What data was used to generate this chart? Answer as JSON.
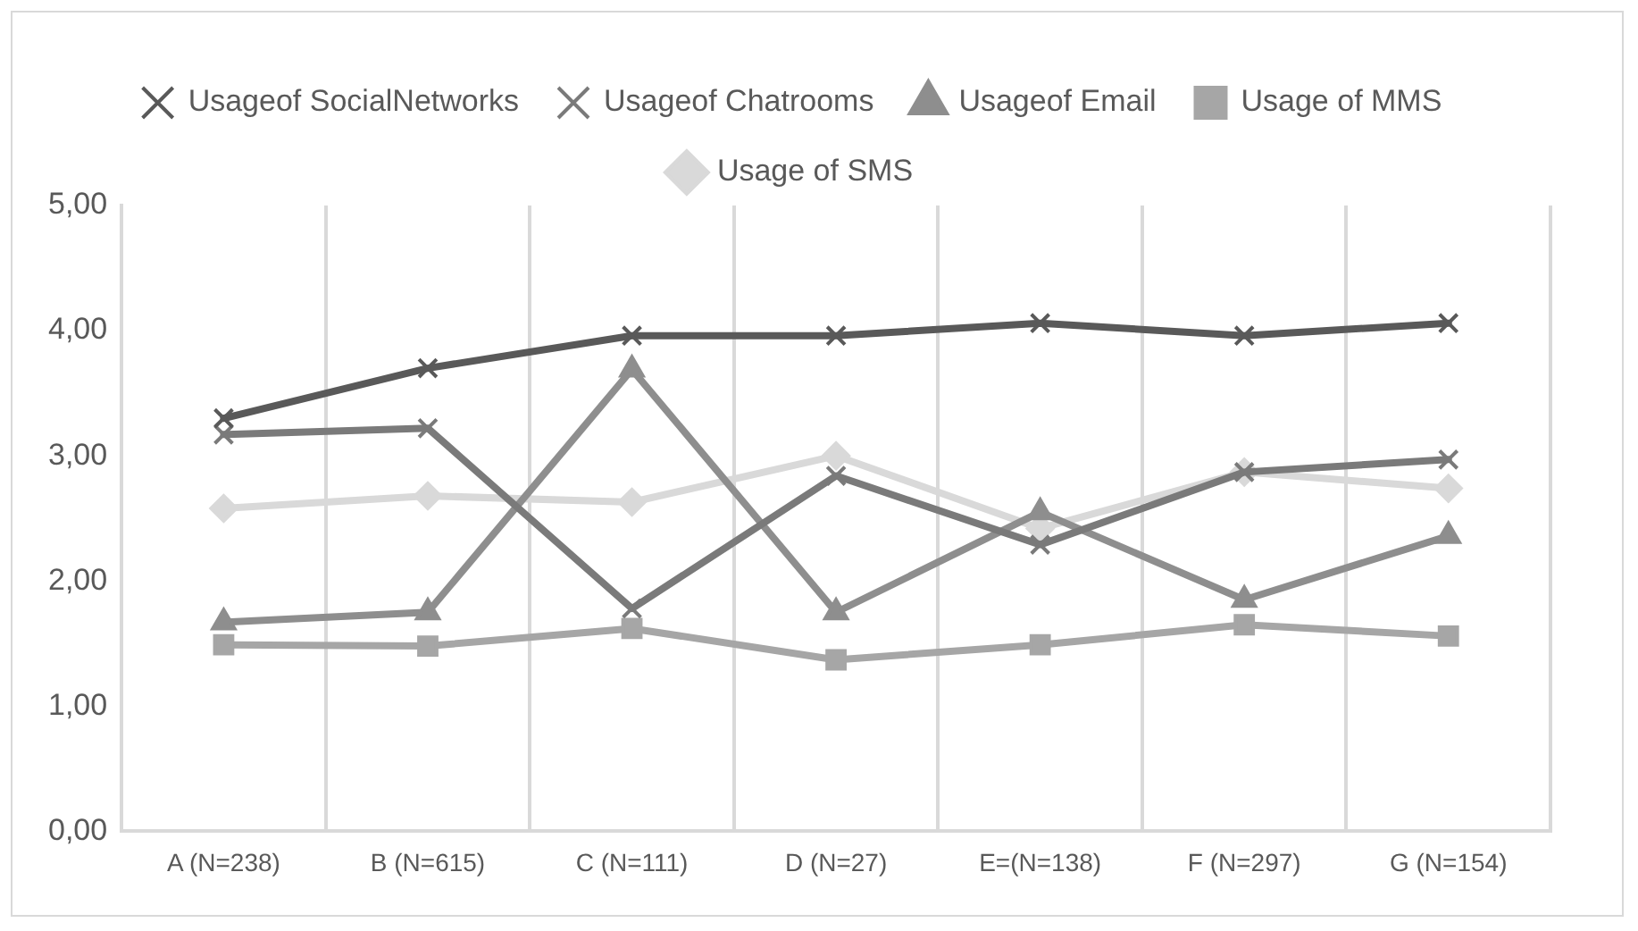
{
  "chart_data": {
    "type": "line",
    "categories": [
      "A (N=238)",
      "B (N=615)",
      "C (N=111)",
      "D (N=27)",
      "E=(N=138)",
      "F (N=297)",
      "G (N=154)"
    ],
    "series": [
      {
        "name": "Usage of SMS",
        "color": "#d9d9d9",
        "marker": "diamond",
        "values": [
          2.58,
          2.68,
          2.63,
          3.0,
          2.42,
          2.87,
          2.74
        ]
      },
      {
        "name": "Usage of MMS",
        "color": "#a6a6a6",
        "marker": "square",
        "values": [
          1.49,
          1.48,
          1.62,
          1.37,
          1.49,
          1.65,
          1.56
        ]
      },
      {
        "name": "Usageof Email",
        "color": "#8e8e8e",
        "marker": "triangle",
        "values": [
          1.67,
          1.75,
          3.69,
          1.75,
          2.55,
          1.85,
          2.36
        ]
      },
      {
        "name": "Usageof Chatrooms",
        "color": "#7a7a7a",
        "marker": "cross",
        "values": [
          3.17,
          3.22,
          1.78,
          2.84,
          2.29,
          2.87,
          2.97
        ]
      },
      {
        "name": "Usageof SocialNetworks",
        "color": "#595959",
        "marker": "cross",
        "values": [
          3.3,
          3.7,
          3.96,
          3.96,
          4.06,
          3.96,
          4.06
        ]
      }
    ],
    "ylim": [
      0,
      5
    ],
    "yticks": [
      {
        "value": 0,
        "label": "0,00"
      },
      {
        "value": 1,
        "label": "1,00"
      },
      {
        "value": 2,
        "label": "2,00"
      },
      {
        "value": 3,
        "label": "3,00"
      },
      {
        "value": 4,
        "label": "4,00"
      },
      {
        "value": 5,
        "label": "5,00"
      }
    ],
    "grid": "x",
    "legend": "top",
    "line_style": "solid"
  }
}
